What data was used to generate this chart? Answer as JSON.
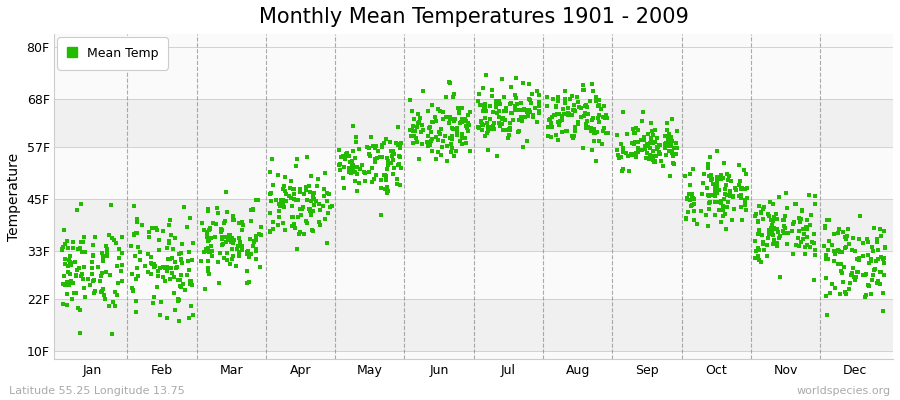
{
  "title": "Monthly Mean Temperatures 1901 - 2009",
  "ylabel": "Temperature",
  "xlabel_bottom_left": "Latitude 55.25 Longitude 13.75",
  "xlabel_bottom_right": "worldspecies.org",
  "legend_label": "Mean Temp",
  "dot_color": "#22bb00",
  "background_color": "#ffffff",
  "band_colors_even": "#f0f0f0",
  "band_colors_odd": "#fafafa",
  "ytick_labels": [
    "10F",
    "22F",
    "33F",
    "45F",
    "57F",
    "68F",
    "80F"
  ],
  "ytick_values": [
    10,
    22,
    33,
    45,
    57,
    68,
    80
  ],
  "ylim": [
    8,
    83
  ],
  "months": [
    "Jan",
    "Feb",
    "Mar",
    "Apr",
    "May",
    "Jun",
    "Jul",
    "Aug",
    "Sep",
    "Oct",
    "Nov",
    "Dec"
  ],
  "mean_temps_F": [
    28.5,
    29.0,
    35.5,
    44.0,
    53.5,
    61.5,
    65.0,
    63.5,
    57.0,
    46.5,
    37.5,
    31.0
  ],
  "std_temps_F": [
    5.5,
    6.0,
    4.5,
    4.0,
    3.5,
    3.5,
    3.5,
    3.5,
    3.0,
    3.5,
    4.0,
    5.0
  ],
  "n_years": 109,
  "marker_size": 5,
  "title_fontsize": 15,
  "axis_fontsize": 10,
  "tick_fontsize": 9,
  "legend_fontsize": 9,
  "dpi": 100,
  "figsize": [
    9.0,
    4.0
  ]
}
